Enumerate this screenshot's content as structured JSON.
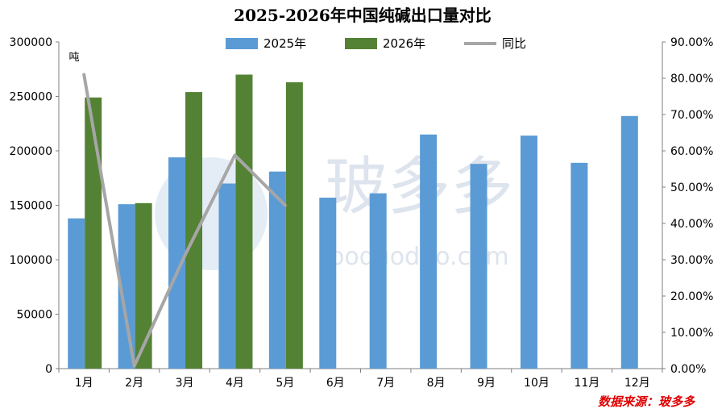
{
  "chart_data": {
    "type": "bar",
    "title": "2025-2026年中国纯碱出口量对比",
    "unit_label": "吨",
    "source": "数据来源：玻多多",
    "watermark": {
      "text": "玻多多",
      "subtext": "boduoduo.com"
    },
    "categories": [
      "1月",
      "2月",
      "3月",
      "4月",
      "5月",
      "6月",
      "7月",
      "8月",
      "9月",
      "10月",
      "11月",
      "12月"
    ],
    "series": [
      {
        "name": "2025年",
        "type": "bar",
        "axis": "left",
        "color": "#5b9bd5",
        "values": [
          138000,
          151000,
          194000,
          170000,
          181000,
          157000,
          161000,
          215000,
          188000,
          214000,
          189000,
          232000
        ]
      },
      {
        "name": "2026年",
        "type": "bar",
        "axis": "left",
        "color": "#548235",
        "values": [
          249000,
          152000,
          254000,
          270000,
          263000,
          null,
          null,
          null,
          null,
          null,
          null,
          null
        ]
      },
      {
        "name": "同比",
        "type": "line",
        "axis": "right",
        "color": "#a6a6a6",
        "values": [
          81.0,
          0.7,
          31.0,
          58.8,
          45.0,
          null,
          null,
          null,
          null,
          null,
          null,
          null
        ]
      }
    ],
    "y_left": {
      "min": 0,
      "max": 300000,
      "step": 50000,
      "ticks": [
        "0",
        "50000",
        "100000",
        "150000",
        "200000",
        "250000",
        "300000"
      ]
    },
    "y_right": {
      "min": 0,
      "max": 90,
      "step": 10,
      "ticks": [
        "0.00%",
        "10.00%",
        "20.00%",
        "30.00%",
        "40.00%",
        "50.00%",
        "60.00%",
        "70.00%",
        "80.00%",
        "90.00%"
      ]
    },
    "grid": false,
    "legend_position": "top"
  }
}
